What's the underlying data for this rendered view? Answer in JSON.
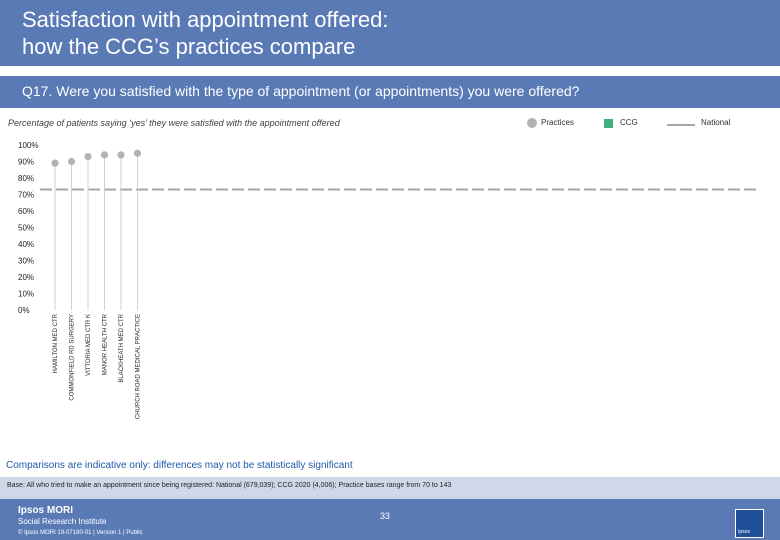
{
  "header": {
    "title": "Satisfaction with appointment offered:\nhow the CCG’s practices compare",
    "question": "Q17. Were you satisfied with the type of appointment (or appointments) you were offered?"
  },
  "subtitle": "Percentage of patients saying ‘yes’ they were satisfied with the appointment offered",
  "legend": {
    "practices": "Practices",
    "ccg": "CCG",
    "national": "National"
  },
  "colors": {
    "header_bg": "#5a7ab5",
    "practice_dot": "#b3b3b3",
    "ccg_square": "#40b080",
    "national_line": "#a6a6a6",
    "note_text": "#1d5aa8"
  },
  "chart_data": {
    "type": "scatter",
    "ylim": [
      0,
      100
    ],
    "y_ticks": [
      "0%",
      "10%",
      "20%",
      "30%",
      "40%",
      "50%",
      "60%",
      "70%",
      "80%",
      "90%",
      "100%"
    ],
    "categories": [
      "HAMILTON MED CTR",
      "COMMONFIELD RD SURGERY",
      "VITTORIA MED CTR K",
      "MANOR HEALTH CTR",
      "BLACKHEATH MED CTR",
      "CHURCH ROAD MEDICAL PRACTICE"
    ],
    "series": [
      {
        "name": "Practices",
        "values": [
          89,
          90,
          93,
          94,
          94,
          95
        ]
      }
    ],
    "reference_lines": [
      {
        "name": "National",
        "value": 73
      }
    ],
    "grid": false
  },
  "note": "Comparisons are indicative only: differences may not be statistically significant",
  "base": "Base: All who tried to make an appointment since being registered: National (679,039); CCG 2020 (4,006); Practice bases range from 70 to 143",
  "footer": {
    "brand": "Ipsos MORI",
    "brand_sub": "Social Research Institute",
    "copyright": "© Ipsos MORI      19-07180-01 | Version 1 | Public",
    "page_number": "33",
    "logo_text": "Ipsos"
  }
}
